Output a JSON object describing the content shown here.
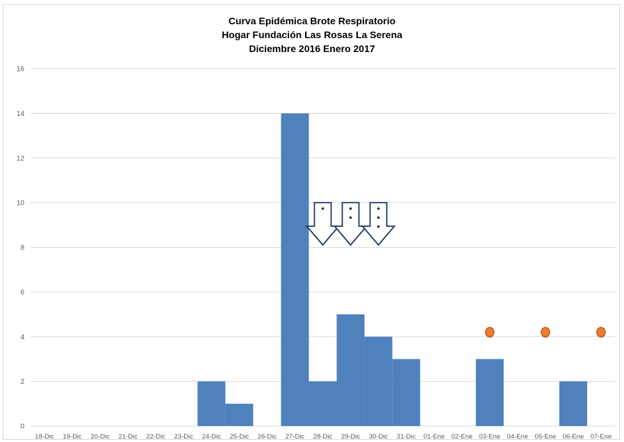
{
  "chart_data": {
    "type": "bar",
    "title_lines": [
      "Curva Epidémica Brote Respiratorio",
      "Hogar Fundación Las Rosas La Serena",
      "Diciembre 2016 Enero 2017"
    ],
    "categories": [
      "18-Dic",
      "19-Dic",
      "20-Dic",
      "21-Dic",
      "22-Dic",
      "23-Dic",
      "24-Dic",
      "25-Dic",
      "26-Dic",
      "27-Dic",
      "28-Dic",
      "29-Dic",
      "30-Dic",
      "31-Dic",
      "01-Ene",
      "02-Ene",
      "03-Ene",
      "04-Ene",
      "05-Ene",
      "06-Ene",
      "07-Ene"
    ],
    "values": [
      0,
      0,
      0,
      0,
      0,
      0,
      2,
      1,
      0,
      14,
      2,
      5,
      4,
      3,
      0,
      0,
      3,
      0,
      0,
      2,
      0
    ],
    "ylim": [
      0,
      16
    ],
    "yticks": [
      0,
      2,
      4,
      6,
      8,
      10,
      12,
      14,
      16
    ],
    "grid": true,
    "bar_color": "#4f81bd",
    "marker_color": "#ed7d31",
    "markers": [
      {
        "category": "03-Ene",
        "y": 4.2
      },
      {
        "category": "05-Ene",
        "y": 4.2
      },
      {
        "category": "07-Ene",
        "y": 4.2
      }
    ],
    "arrow_annotations": [
      {
        "category": "28-Dic",
        "label_lines": [
          "*"
        ]
      },
      {
        "category": "29-Dic",
        "label_lines": [
          "*",
          "*"
        ]
      },
      {
        "category": "30-Dic",
        "label_lines": [
          "*",
          "*",
          "*"
        ]
      }
    ],
    "arrow_color": "#1f3864"
  }
}
